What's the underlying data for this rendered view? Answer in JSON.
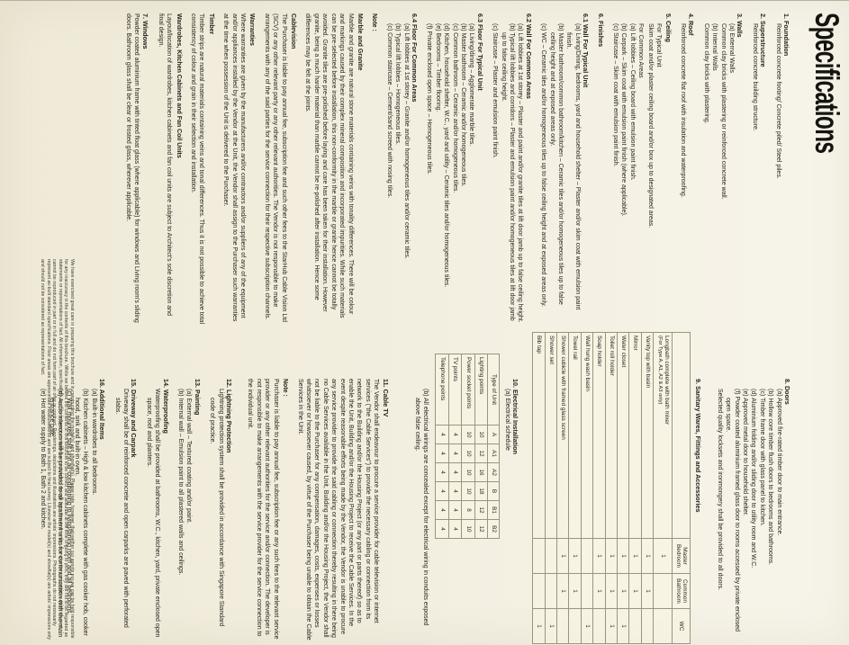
{
  "page": {
    "title": "Specifications"
  },
  "colors": {
    "paper": "#f3efe1",
    "paper_light": "#f7f4ea",
    "paper_dark": "#efead7",
    "ink": "#26231d",
    "table_line": "#9a957f"
  },
  "left_column": [
    {
      "t": "h",
      "text": "1.  Foundation"
    },
    {
      "t": "p",
      "text": "Reinforced concrete footing/ Concrete piled/ Steel piles."
    },
    {
      "t": "h",
      "text": "2.  Superstructure"
    },
    {
      "t": "p",
      "text": "Reinforced concrete building structure."
    },
    {
      "t": "h",
      "text": "3.  Walls"
    },
    {
      "t": "p",
      "text": "(a)  External Walls"
    },
    {
      "t": "p",
      "text": "Common clay bricks with plastering or reinforced concrete wall."
    },
    {
      "t": "p",
      "text": "(b)  Internal Walls"
    },
    {
      "t": "p",
      "text": "Common clay bricks with plastering."
    },
    {
      "t": "h",
      "text": "4.  Roof"
    },
    {
      "t": "p",
      "text": "Reinforced concrete flat roof with insulation and waterproofing."
    },
    {
      "t": "h",
      "text": "5.  Ceiling"
    },
    {
      "t": "sub",
      "text": "For Typical Unit"
    },
    {
      "t": "p",
      "text": "Skim coat and/or plaster ceiling board and/or box up to designated areas."
    },
    {
      "t": "sub",
      "text": "For Common Areas"
    },
    {
      "t": "p",
      "text": "(a)  Lift lobbies – Ceiling board with emulsion paint finish."
    },
    {
      "t": "p",
      "text": "(b)  Carpark – Skim coat with emulsion paint finish (where applicable)."
    },
    {
      "t": "p",
      "text": "(c)  Staircase – Skim coat with emulsion paint finish."
    },
    {
      "t": "h",
      "text": "6.  Finishes"
    },
    {
      "t": "h",
      "text": "6.1 Wall For Typical Unit"
    },
    {
      "t": "p",
      "text": "(a)  Living/Dining, bedrooms, yard and household shelter – Plaster and/or skim coat with emulsion paint finish."
    },
    {
      "t": "p",
      "text": "(b)  Master bathroom/common bathroom/kitchen – Ceramic tiles and/or homogeneous tiles up to false ceiling height and at exposed areas only."
    },
    {
      "t": "p",
      "text": "(c)  WC – Ceramic tiles and/or homogeneous tiles up to false ceiling height and at exposed areas only."
    },
    {
      "t": "h",
      "text": "6.2 Wall For Common Areas"
    },
    {
      "t": "p",
      "text": "(a)  Lift lobbies at 1st storey – Plaster and paint and/or granite tiles at lift door jamb up to false ceiling height."
    },
    {
      "t": "p",
      "text": "(b)  Typical lift lobbies and corridors – Plaster and emulsion paint and/or homogeneous tiles at lift door jamb up to false ceiling height."
    },
    {
      "t": "p",
      "text": "(c)  Staircase – Plaster and emulsion paint finish."
    },
    {
      "t": "h",
      "text": "6.3 Floor For Typical Unit"
    },
    {
      "t": "p",
      "text": "(a)  Living/dining – Agglomerate marble tiles."
    },
    {
      "t": "p",
      "text": "(b)  Master bathroom – Ceramic and/or homogeneous tiles."
    },
    {
      "t": "p",
      "text": "(c)  Common bathroom – Ceramic and/or homogeneous tiles."
    },
    {
      "t": "p",
      "text": "(d)  Kitchen, household shelter, W.C., yard and utility – Ceramic tiles and/or homogeneous tiles."
    },
    {
      "t": "p",
      "text": "(e)  Bedrooms – Timber flooring."
    },
    {
      "t": "p",
      "text": "(f)  Private enclosed open space – Homogeneous tiles."
    },
    {
      "t": "h",
      "text": "6.4 Floor For Common Areas"
    },
    {
      "t": "p",
      "text": "(a)  Lift lobbies at 1st storey – Granite and/or homogeneous tiles and/or ceramic tiles."
    },
    {
      "t": "p",
      "text": "(b)  Typical lift lobbies – Homogeneous tiles."
    },
    {
      "t": "p",
      "text": "(c)  Common staircase – Cement/sand screed with nosing tiles."
    },
    {
      "t": "bh",
      "text": "Note :"
    },
    {
      "t": "bh",
      "text": "Marble and Granite"
    },
    {
      "t": "pp",
      "text": "Marble and granite are natural stone materials containing veins with tonality differences. There will be colour and markings caused by their complex mineral composition and incorporated impurities. While such materials can be pre-selected before installation, this non-conformity in the marble or granite hence cannot be totally avoided. Granite tiles are pre-polished before laying and care has been taken for their installation. However granite, being a much harder material than marble cannot be re-polished after installation. Hence some differences may be felt at the joints."
    },
    {
      "t": "bh",
      "text": "Cablevision"
    },
    {
      "t": "pp",
      "text": "The Purchaser is liable to pay annual fee, subscription fee and such other fees to the StarHub Cable Vision Ltd (SCV) or any other relevant party or any other relevant authorities. The Vendor is not responsible to make arrangements with any of the said parties for the service connection for their respective subscription channels."
    },
    {
      "t": "bh",
      "text": "Warranties"
    },
    {
      "t": "pp",
      "text": "Where warranties are given by the manufacturers and/or contractors and/or suppliers of any of the equipment and/or appliances installed by the Vendor at the Unit, the Vendor shall assign to the Purchaser such warranties at the time when possession of the Unit is delivered to the Purchaser."
    },
    {
      "t": "bh",
      "text": "Timber"
    },
    {
      "t": "pp",
      "text": "Timber strips are natural materials containing veins and tonal differences. Thus it is not possible to achieve total consistency of colour and grain in their selection and installation."
    },
    {
      "t": "bh",
      "text": "Wardrobes, Kitchen Cabinets and Fan Coil Units"
    },
    {
      "t": "pp",
      "text": "Layout/location of wardrobes, kitchen cabinets and fan coil units are subject to Architect's sole discretion and final design."
    },
    {
      "t": "h",
      "text": "7.  Windows"
    },
    {
      "t": "pp",
      "text": "Powder coated aluminium frame with tinted float glass (where applicable) for windows and Living room's sliding doors. Bathroom glass shall be clear or frosted glass, wherever applicable."
    }
  ],
  "right_column": [
    {
      "t": "h",
      "text": "8.  Doors"
    },
    {
      "t": "p",
      "text": "(a)  Approved fire-rated timber door to main entrance."
    },
    {
      "t": "p",
      "text": "(b)  Hollow core timber flush doors to bedrooms and bathrooms."
    },
    {
      "t": "p",
      "text": "(c)  Timber frame door with glass panel to kitchen."
    },
    {
      "t": "p",
      "text": "(d)  Aluminium folding and/or sliding door to utility room and W.C."
    },
    {
      "t": "p",
      "text": "(e)  Approved metal door to household shelter."
    },
    {
      "t": "p",
      "text": "(f)  Powder coated aluminium framed glass door to rooms accessed by private enclosed open space."
    },
    {
      "t": "p",
      "text": "Selected quality locksets and ironmongery shall be provided to all doors."
    },
    {
      "t": "h mt",
      "text": "9.  Sanitary Wares, Fittings and Accessories"
    },
    {
      "t": "table1"
    },
    {
      "t": "h mt",
      "text": "10. Electrical Installation"
    },
    {
      "t": "p",
      "text": "(a)  Electrical schedule"
    },
    {
      "t": "table2"
    },
    {
      "t": "p",
      "text": "(b)  All electrical wirings are concealed except for electrical wiring in conduits exposed above false ceiling."
    },
    {
      "t": "h mtlg",
      "text": "11. Cable TV"
    },
    {
      "t": "pp",
      "text": "The Vendor shall endeavour to procure a service provider for cable television or internet services (\"the Cable Services\") to provide the necessary cabling or connection from its network to the Building and/or the Housing Project (or any part or parts thereof) so as to enable the Unit, Building and/or the Housing Project to receive the Cable Services. In the event despite reasonable efforts being made by the Vendor, the Vendor is unable to procure any service provider to provide the said cabling or connection thereby resulting in there being no Cable Services available in the Unit, Building and/or the Housing Project, the Vendor shall not be liable to the Purchaser for any compensation, damages, costs, expenses or losses whatsoever or howsoever caused, by virtue of the Purchaser being unable to obtain the Cable Services in the Unit."
    },
    {
      "t": "bh",
      "text": "Note :"
    },
    {
      "t": "pp",
      "text": "Purchaser is liable to pay annual fee, subscription fee or any such fees to the relevant service provider or any other relevant authorities for the service and/or connection. The developer is not responsible to make arrangements with the service provider for the service connection to the individual unit."
    },
    {
      "t": "h mt",
      "text": "12. Lightning Protection"
    },
    {
      "t": "p",
      "text": "Lightning protection system shall be provided in accordance with Singapore Standard code of practice."
    },
    {
      "t": "h",
      "text": "13. Painting"
    },
    {
      "t": "p",
      "text": "(a)  External wall – Textured coating and/or paint."
    },
    {
      "t": "p",
      "text": "(b)  Internal wall – Emulsion paint to all plastered walls and ceilings."
    },
    {
      "t": "h",
      "text": "14. Waterproofing"
    },
    {
      "t": "p",
      "text": "Waterproofing shall be provided at bathrooms, W.C., kitchen, yard, private enclosed open space, roof and planters."
    },
    {
      "t": "h",
      "text": "15. Driveway and Carpark"
    },
    {
      "t": "p",
      "text": "Driveway shall be of reinforced concrete and open carparks are paved with perforated slabs."
    },
    {
      "t": "h",
      "text": "16. Additional Items"
    },
    {
      "t": "p",
      "text": "(a)  Built-in wardrobes to all bedrooms."
    },
    {
      "t": "p",
      "text": "(b)  Kitchen cabinets – High & low kitchen cabinets complete with gas cooker hob, cooker hood, sink and built-in oven."
    },
    {
      "t": "p",
      "text": "(c)  Wall mounted split unit air-conditioning to living/dining room and all bedrooms."
    },
    {
      "t": "p",
      "text": "(d)  Audio intercom will be provided to all apartment units for communication with the main entrance gate."
    },
    {
      "t": "p",
      "text": "(e)  Hot water supply to Bath 1, Bath 2 and kitchen."
    }
  ],
  "sanitary_table": {
    "columns": [
      "Master Bedroom",
      "Common Bathroom",
      "WC"
    ],
    "rows": [
      {
        "label": "Longbath complete with bath mixer",
        "note": "(For Type A, A1, A2 & A3 only)",
        "cells": [
          "1",
          "",
          ""
        ]
      },
      {
        "label": "Vanity top with basin",
        "cells": [
          "1",
          "1",
          ""
        ]
      },
      {
        "label": "Mirror",
        "cells": [
          "1",
          "1",
          ""
        ]
      },
      {
        "label": "Water closet",
        "cells": [
          "1",
          "1",
          "1"
        ]
      },
      {
        "label": "Toilet roll holder",
        "cells": [
          "1",
          "1",
          "1"
        ]
      },
      {
        "label": "Soap holder",
        "cells": [
          "1",
          "1",
          ""
        ]
      },
      {
        "label": "Wall hung wash basin",
        "cells": [
          "",
          "",
          "1"
        ]
      },
      {
        "label": "Towel rail",
        "cells": [
          "1",
          "1",
          ""
        ]
      },
      {
        "label": "Shower cubicle with framed glass screen",
        "cells": [
          "1",
          "1",
          ""
        ]
      },
      {
        "label": "Shower set",
        "cells": [
          "",
          "",
          "1"
        ]
      },
      {
        "label": "Bib tap",
        "cells": [
          "",
          "",
          "1"
        ]
      }
    ]
  },
  "electrical_table": {
    "corner": "Type of Unit",
    "units": [
      "A",
      "A1",
      "A2",
      "B",
      "B1",
      "B2"
    ],
    "rows": [
      {
        "label": "Lighting points",
        "values": [
          "10",
          "12",
          "16",
          "18",
          "12",
          "12"
        ]
      },
      {
        "label": "Power socket points",
        "values": [
          "10",
          "10",
          "10",
          "10",
          "8",
          "10"
        ]
      },
      {
        "label": "TV points",
        "values": [
          "4",
          "4",
          "4",
          "4",
          "4",
          "4"
        ]
      },
      {
        "label": "Telephone points",
        "values": [
          "4",
          "4",
          "4",
          "4",
          "4",
          "4"
        ]
      }
    ]
  },
  "disclaimer": "We have exercised great care in preparing this brochure and in constructing the model(s) and showflat(s). Please note, however, that neither our agents nor we can be held responsible for any inaccuracy in the contents of this brochure. While we believe the contents of this brochure to be correct and accurate at the time of going to print, they are not to be regarded as statements or representations of fact. All information, specifications and plans herein contained are subject to change from time to time by us and/or the competent authorities, and cannot be reproduced in part or in full and do not form part of an offer or contract. Renderings, depictions and illustrations are artists' impressions. Photographs do not necessarily represent as-built standard specifications. Floor areas are approximate measurements and are subject to final survey. Likewise the model(s) and showflat(s) are artists' impressions only and should not be considered as representations of fact."
}
